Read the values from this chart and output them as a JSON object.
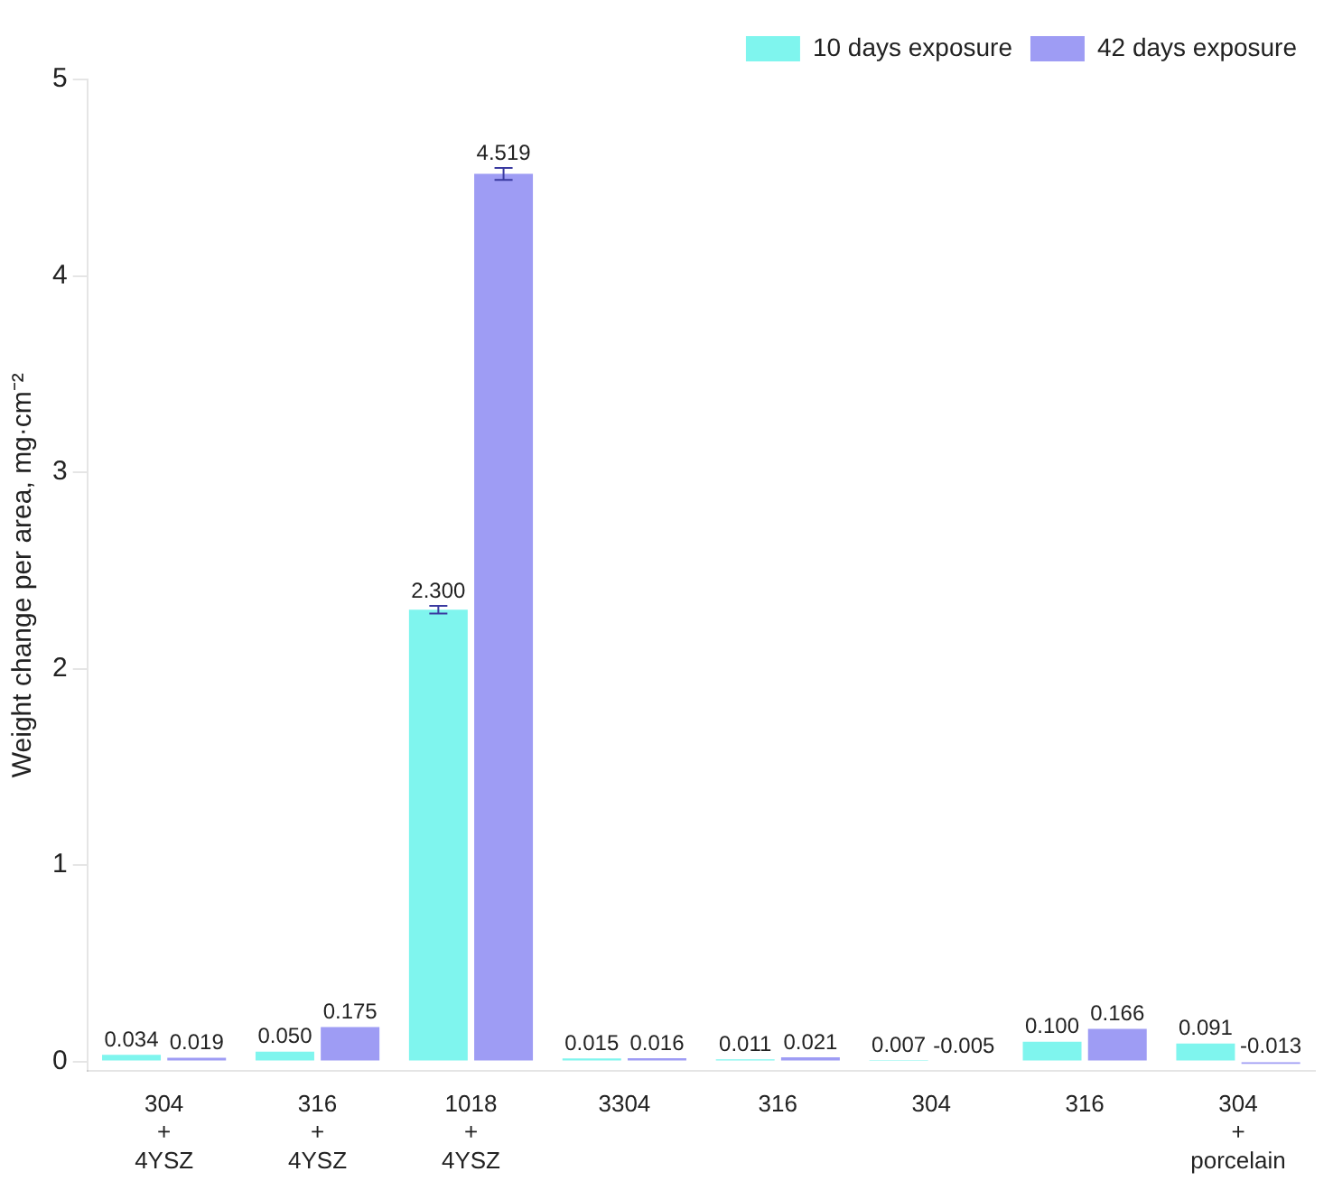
{
  "chart_data": {
    "type": "bar",
    "ylabel": "Weight change per area, mg·cm⁻²",
    "categories": [
      "304\n+\n4YSZ",
      "316\n+\n4YSZ",
      "1018\n+\n4YSZ",
      "3304",
      "316",
      "304",
      "316",
      "304\n+\nporcelain"
    ],
    "series": [
      {
        "name": "10 days exposure",
        "color": "#7ff5ee",
        "values": [
          0.034,
          0.05,
          2.3,
          0.015,
          0.011,
          0.007,
          0.1,
          0.091
        ],
        "errors": [
          null,
          null,
          0.02,
          null,
          null,
          null,
          null,
          null
        ],
        "value_labels": [
          "0.034",
          "0.050",
          "2.300",
          "0.015",
          "0.011",
          "0.007",
          "0.100",
          "0.091"
        ]
      },
      {
        "name": "42 days exposure",
        "color": "#9e9cf4",
        "values": [
          0.019,
          0.175,
          4.519,
          0.016,
          0.021,
          -0.005,
          0.166,
          -0.013
        ],
        "errors": [
          null,
          null,
          0.03,
          null,
          null,
          null,
          null,
          null
        ],
        "value_labels": [
          "0.019",
          "0.175",
          "4.519",
          "0.016",
          "0.021",
          "-0.005",
          "0.166",
          "-0.013"
        ]
      }
    ],
    "ylim": [
      -0.05,
      5
    ],
    "yticks": [
      0,
      1,
      2,
      3,
      4,
      5
    ],
    "grid": false,
    "legend": "top right"
  }
}
